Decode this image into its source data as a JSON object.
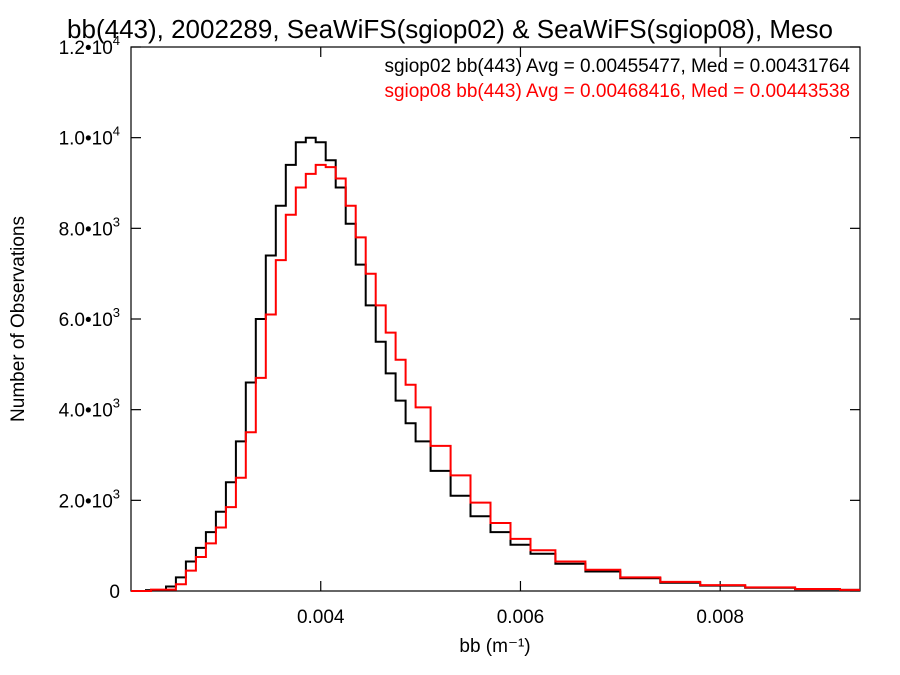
{
  "chart_data": {
    "type": "line",
    "title": "bb(443), 2002289, SeaWiFS(sgiop02) & SeaWiFS(sgiop08), Meso",
    "xlabel": "bb (m⁻¹)",
    "ylabel": "Number of Observations",
    "xlim": [
      0.0021,
      0.0094
    ],
    "ylim": [
      0,
      12000
    ],
    "x_ticks": [
      {
        "value": 0.004,
        "label": "0.004"
      },
      {
        "value": 0.006,
        "label": "0.006"
      },
      {
        "value": 0.008,
        "label": "0.008"
      }
    ],
    "y_ticks": [
      {
        "value": 0,
        "mant": "0",
        "exp": ""
      },
      {
        "value": 2000,
        "mant": "2.0•10",
        "exp": "3"
      },
      {
        "value": 4000,
        "mant": "4.0•10",
        "exp": "3"
      },
      {
        "value": 6000,
        "mant": "6.0•10",
        "exp": "3"
      },
      {
        "value": 8000,
        "mant": "8.0•10",
        "exp": "3"
      },
      {
        "value": 10000,
        "mant": "1.0•10",
        "exp": "4"
      },
      {
        "value": 12000,
        "mant": "1.2•10",
        "exp": "4"
      }
    ],
    "grid": false,
    "legend_position": "top-right",
    "series": [
      {
        "name": "sgiop02 bb(443) Avg = 0.00455477, Med = 0.00431764",
        "color": "#000000",
        "x": [
          0.0021,
          0.0024,
          0.0025,
          0.0026,
          0.0027,
          0.0028,
          0.0029,
          0.003,
          0.0031,
          0.0032,
          0.0033,
          0.0034,
          0.0035,
          0.0036,
          0.0037,
          0.0038,
          0.0039,
          0.004,
          0.0041,
          0.0042,
          0.0043,
          0.0044,
          0.0045,
          0.0046,
          0.0047,
          0.0048,
          0.0049,
          0.005,
          0.0052,
          0.0054,
          0.0056,
          0.0058,
          0.006,
          0.0062,
          0.0065,
          0.0068,
          0.0072,
          0.0076,
          0.008,
          0.0085,
          0.009,
          0.0094
        ],
        "y": [
          0,
          20,
          100,
          300,
          650,
          950,
          1300,
          1750,
          2400,
          3300,
          4600,
          6000,
          7400,
          8500,
          9400,
          9900,
          10000,
          9900,
          9500,
          8900,
          8100,
          7200,
          6300,
          5500,
          4800,
          4200,
          3700,
          3300,
          2650,
          2100,
          1650,
          1300,
          1020,
          820,
          600,
          430,
          280,
          180,
          120,
          70,
          40,
          25
        ]
      },
      {
        "name": "sgiop08 bb(443) Avg = 0.00468416, Med = 0.00443538",
        "color": "#ff0000",
        "x": [
          0.0021,
          0.0025,
          0.0026,
          0.0027,
          0.0028,
          0.0029,
          0.003,
          0.0031,
          0.0032,
          0.0033,
          0.0034,
          0.0035,
          0.0036,
          0.0037,
          0.0038,
          0.0039,
          0.004,
          0.0041,
          0.0042,
          0.0043,
          0.0044,
          0.0045,
          0.0046,
          0.0047,
          0.0048,
          0.0049,
          0.005,
          0.0052,
          0.0054,
          0.0056,
          0.0058,
          0.006,
          0.0062,
          0.0065,
          0.0068,
          0.0072,
          0.0076,
          0.008,
          0.0085,
          0.009,
          0.0094
        ],
        "y": [
          0,
          30,
          150,
          450,
          750,
          1050,
          1400,
          1850,
          2500,
          3500,
          4700,
          6100,
          7300,
          8300,
          8900,
          9200,
          9400,
          9350,
          9100,
          8500,
          7800,
          7000,
          6300,
          5700,
          5100,
          4550,
          4050,
          3200,
          2550,
          1950,
          1500,
          1150,
          900,
          650,
          470,
          300,
          200,
          130,
          80,
          45,
          25
        ]
      }
    ]
  }
}
